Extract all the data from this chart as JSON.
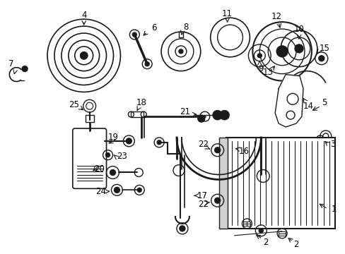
{
  "background_color": "#ffffff",
  "text_color": "#000000",
  "line_color": "#1a1a1a",
  "figsize": [
    4.89,
    3.6
  ],
  "dpi": 100,
  "font_size": 8.5
}
